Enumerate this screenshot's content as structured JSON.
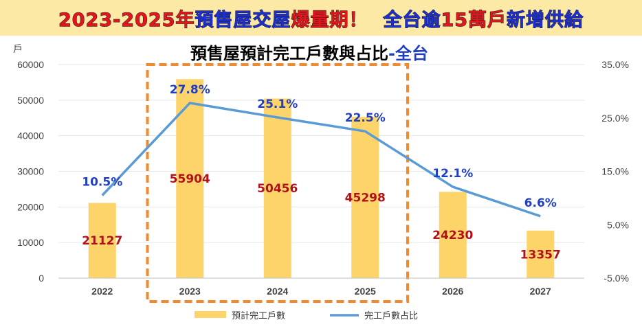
{
  "banner": {
    "part1": "2023-2025年",
    "part2": "預售屋交屋",
    "part3": "爆量期！",
    "part4": "全台逾",
    "part5": "15萬戶",
    "part6": "新增供給"
  },
  "colors": {
    "bar": "#fdd469",
    "line": "#5b9bd5",
    "highlight_box": "#f08a2c",
    "bar_label": "#b01218",
    "pct_label": "#1f3fbf",
    "banner_bg": "#fde9a6"
  },
  "chart_data": {
    "type": "bar+line",
    "title_main": "預售屋預計完工戶數與占比",
    "title_suffix": "-全台",
    "left_unit": "戶",
    "categories": [
      "2022",
      "2023",
      "2024",
      "2025",
      "2026",
      "2027"
    ],
    "series": [
      {
        "name": "預計完工戶數",
        "type": "bar",
        "axis": "left",
        "values": [
          21127,
          55904,
          50456,
          45298,
          24230,
          13357
        ],
        "labels": [
          "21127",
          "55904",
          "50456",
          "45298",
          "24230",
          "13357"
        ]
      },
      {
        "name": "完工戶數占比",
        "type": "line",
        "axis": "right",
        "values": [
          10.5,
          27.8,
          25.1,
          22.5,
          12.1,
          6.6
        ],
        "labels": [
          "10.5%",
          "27.8%",
          "25.1%",
          "22.5%",
          "12.1%",
          "6.6%"
        ]
      }
    ],
    "y_left": {
      "min": 0,
      "max": 60000,
      "ticks": [
        0,
        10000,
        20000,
        30000,
        40000,
        50000,
        60000
      ],
      "tick_labels": [
        "0",
        "10000",
        "20000",
        "30000",
        "40000",
        "50000",
        "60000"
      ]
    },
    "y_right": {
      "min": -5,
      "max": 35,
      "ticks": [
        -5,
        5,
        15,
        25,
        35
      ],
      "tick_labels": [
        "-5.0%",
        "5.0%",
        "15.0%",
        "25.0%",
        "35.0%"
      ]
    },
    "highlight_categories": [
      "2023",
      "2024",
      "2025"
    ],
    "legend_position": "bottom"
  }
}
